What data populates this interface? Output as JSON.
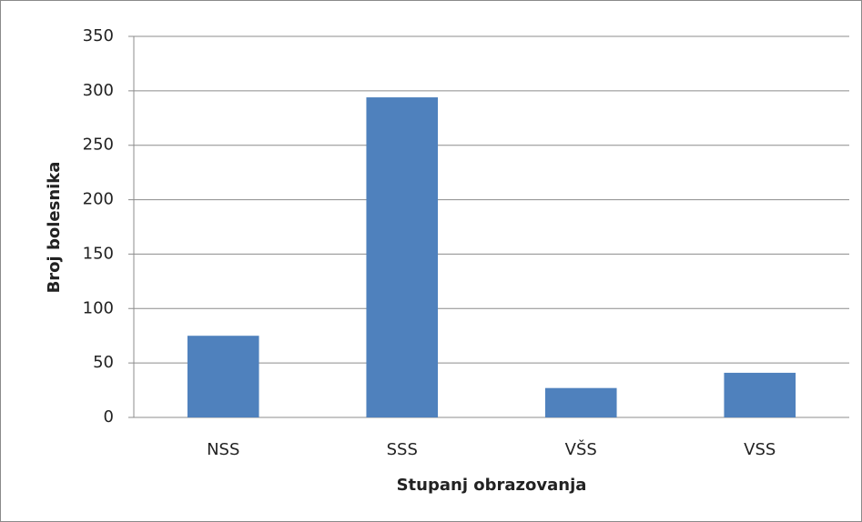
{
  "chart_data": {
    "type": "bar",
    "x_label": "Stupanj obrazovanja",
    "y_label": "Broj bolesnika",
    "categories": [
      "NSS",
      "SSS",
      "VŠS",
      "VSS"
    ],
    "values": [
      75,
      294,
      27,
      41
    ],
    "color": "#4f81bd",
    "ylim": [
      0,
      350
    ],
    "yticks": [
      0,
      50,
      100,
      150,
      200,
      250,
      300,
      350
    ],
    "grid": true
  }
}
